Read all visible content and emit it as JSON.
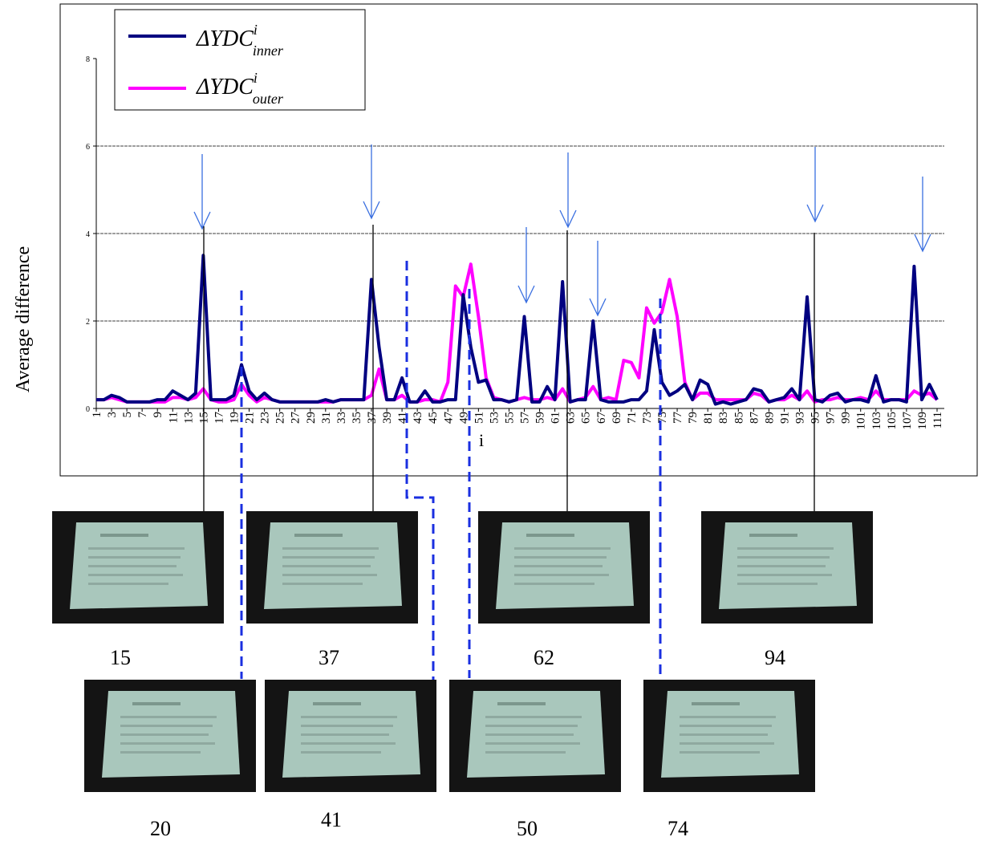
{
  "chart_data": {
    "type": "line",
    "y_label": "Average difference",
    "x_label": "i",
    "x": [
      1,
      2,
      3,
      4,
      5,
      6,
      7,
      8,
      9,
      10,
      11,
      12,
      13,
      14,
      15,
      16,
      17,
      18,
      19,
      20,
      21,
      22,
      23,
      24,
      25,
      26,
      27,
      28,
      29,
      30,
      31,
      32,
      33,
      34,
      35,
      36,
      37,
      38,
      39,
      40,
      41,
      42,
      43,
      44,
      45,
      46,
      47,
      48,
      49,
      50,
      51,
      52,
      53,
      54,
      55,
      56,
      57,
      58,
      59,
      60,
      61,
      62,
      63,
      64,
      65,
      66,
      67,
      68,
      69,
      70,
      71,
      72,
      73,
      74,
      75,
      76,
      77,
      78,
      79,
      80,
      81,
      82,
      83,
      84,
      85,
      86,
      87,
      88,
      89,
      90,
      91,
      92,
      93,
      94,
      95,
      96,
      97,
      98,
      99,
      100,
      101,
      102,
      103,
      104,
      105,
      106,
      107,
      108,
      109,
      110,
      111
    ],
    "series": [
      {
        "name": "ΔYDC",
        "superscript": "i",
        "subscript": "inner",
        "color": "#000080",
        "values": [
          0.2,
          0.2,
          0.3,
          0.25,
          0.15,
          0.15,
          0.15,
          0.15,
          0.2,
          0.2,
          0.4,
          0.3,
          0.2,
          0.35,
          3.5,
          0.2,
          0.2,
          0.2,
          0.3,
          1.0,
          0.4,
          0.2,
          0.35,
          0.2,
          0.15,
          0.15,
          0.15,
          0.15,
          0.15,
          0.15,
          0.2,
          0.15,
          0.2,
          0.2,
          0.2,
          0.2,
          2.95,
          1.4,
          0.2,
          0.2,
          0.7,
          0.15,
          0.15,
          0.4,
          0.15,
          0.15,
          0.2,
          0.2,
          2.6,
          1.4,
          0.6,
          0.65,
          0.2,
          0.2,
          0.15,
          0.2,
          2.1,
          0.15,
          0.15,
          0.5,
          0.2,
          2.9,
          0.15,
          0.2,
          0.2,
          2.0,
          0.2,
          0.15,
          0.15,
          0.15,
          0.2,
          0.2,
          0.4,
          1.8,
          0.6,
          0.3,
          0.4,
          0.55,
          0.2,
          0.65,
          0.55,
          0.1,
          0.15,
          0.1,
          0.15,
          0.2,
          0.45,
          0.4,
          0.15,
          0.2,
          0.25,
          0.45,
          0.2,
          2.55,
          0.2,
          0.15,
          0.3,
          0.35,
          0.15,
          0.2,
          0.2,
          0.15,
          0.75,
          0.15,
          0.2,
          0.2,
          0.15,
          3.25,
          0.2,
          0.55,
          0.2
        ]
      },
      {
        "name": "ΔYDC",
        "superscript": "i",
        "subscript": "outer",
        "color": "#ff00ff",
        "values": [
          0.2,
          0.2,
          0.25,
          0.2,
          0.15,
          0.15,
          0.15,
          0.15,
          0.15,
          0.15,
          0.25,
          0.25,
          0.2,
          0.25,
          0.45,
          0.2,
          0.15,
          0.15,
          0.2,
          0.55,
          0.3,
          0.15,
          0.25,
          0.2,
          0.15,
          0.15,
          0.15,
          0.15,
          0.15,
          0.15,
          0.15,
          0.15,
          0.2,
          0.2,
          0.2,
          0.2,
          0.3,
          0.9,
          0.2,
          0.2,
          0.3,
          0.15,
          0.15,
          0.2,
          0.2,
          0.15,
          0.6,
          2.8,
          2.55,
          3.3,
          2.1,
          0.7,
          0.25,
          0.2,
          0.15,
          0.2,
          0.25,
          0.2,
          0.2,
          0.25,
          0.2,
          0.45,
          0.15,
          0.2,
          0.25,
          0.5,
          0.2,
          0.25,
          0.2,
          1.1,
          1.05,
          0.7,
          2.3,
          1.95,
          2.2,
          2.95,
          2.1,
          0.6,
          0.2,
          0.35,
          0.35,
          0.2,
          0.2,
          0.2,
          0.2,
          0.2,
          0.35,
          0.3,
          0.15,
          0.2,
          0.2,
          0.3,
          0.2,
          0.4,
          0.15,
          0.2,
          0.2,
          0.25,
          0.2,
          0.2,
          0.25,
          0.2,
          0.4,
          0.2,
          0.2,
          0.2,
          0.2,
          0.4,
          0.3,
          0.35,
          0.2
        ]
      }
    ],
    "xlim": [
      1,
      111
    ],
    "xticks": [
      1,
      3,
      5,
      7,
      9,
      11,
      13,
      15,
      17,
      19,
      21,
      23,
      25,
      27,
      29,
      31,
      33,
      35,
      37,
      39,
      41,
      43,
      45,
      47,
      49,
      51,
      53,
      55,
      57,
      59,
      61,
      63,
      65,
      67,
      69,
      71,
      73,
      75,
      77,
      79,
      81,
      83,
      85,
      87,
      89,
      91,
      93,
      95,
      97,
      99,
      101,
      103,
      105,
      107,
      109,
      111
    ],
    "ylim": [
      0,
      8
    ],
    "yticks": [
      0,
      2,
      4,
      6,
      8
    ],
    "grid": true
  },
  "frames": [
    "15",
    "37",
    "62",
    "94",
    "20",
    "41",
    "50",
    "74"
  ]
}
